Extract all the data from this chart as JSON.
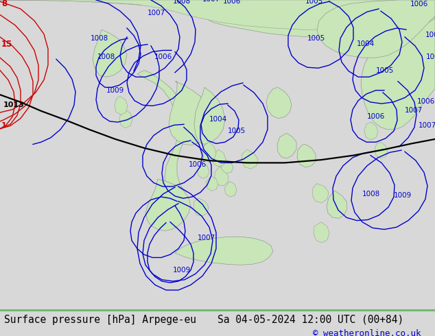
{
  "title_left": "Surface pressure [hPa] Arpege-eu",
  "title_right": "Sa 04-05-2024 12:00 UTC (00+84)",
  "copyright": "© weatheronline.co.uk",
  "bg_ocean": "#d8d8d8",
  "bg_figure": "#d8d8d8",
  "land_color": "#c8e6b8",
  "land_edge": "#888888",
  "green_line": "#70b870",
  "title_fontsize": 10.5,
  "copyright_fontsize": 9,
  "blue": "#0000cc",
  "red": "#cc0000",
  "black": "#000000",
  "lw_isobar": 1.0,
  "lw_black": 1.6,
  "label_fs": 7.5
}
